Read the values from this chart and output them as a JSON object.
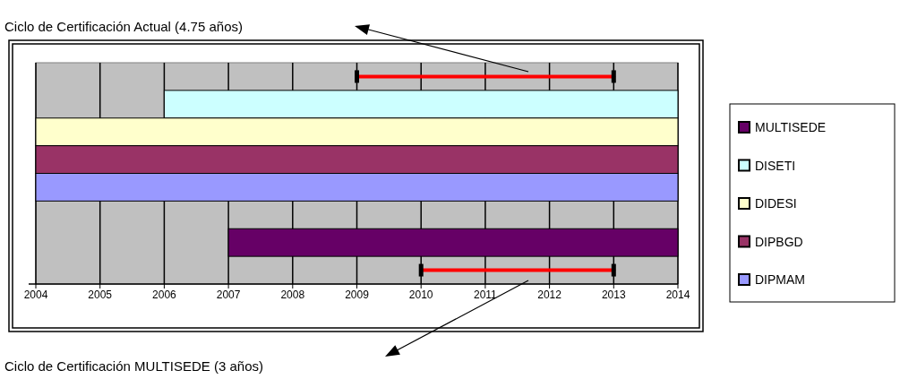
{
  "chart_data": {
    "type": "bar",
    "orientation": "horizontal",
    "categories": [
      null,
      null,
      null,
      null,
      null,
      null,
      null,
      null
    ],
    "series": [
      {
        "name": "MULTISEDE",
        "color": "#660066",
        "values": [
          null,
          null,
          null,
          null,
          null,
          null,
          7,
          null
        ],
        "base": [
          null,
          null,
          null,
          null,
          null,
          null,
          2007,
          null
        ]
      },
      {
        "name": "DISETI",
        "color": "#ccffff",
        "values": [
          null,
          8,
          null,
          null,
          null,
          null,
          null,
          null
        ],
        "base": [
          null,
          2006,
          null,
          null,
          null,
          null,
          null,
          null
        ]
      },
      {
        "name": "DIDESI",
        "color": "#ffffcc",
        "values": [
          null,
          null,
          10,
          null,
          null,
          null,
          null,
          null
        ],
        "base": [
          null,
          null,
          2004,
          null,
          null,
          null,
          null,
          null
        ]
      },
      {
        "name": "DIPBGD",
        "color": "#993366",
        "values": [
          null,
          null,
          null,
          10,
          null,
          null,
          null,
          null
        ],
        "base": [
          null,
          null,
          null,
          2004,
          null,
          null,
          null,
          null
        ]
      },
      {
        "name": "DIPMAM",
        "color": "#9999ff",
        "values": [
          null,
          null,
          null,
          null,
          10,
          null,
          null,
          null
        ],
        "base": [
          null,
          null,
          null,
          null,
          2004,
          null,
          null,
          null
        ]
      },
      {
        "color": "#ff0000",
        "line_style": "solid",
        "values": [
          4,
          null,
          null,
          null,
          null,
          null,
          null,
          3
        ],
        "base": [
          2009,
          null,
          null,
          null,
          null,
          null,
          null,
          2010
        ]
      }
    ],
    "xlim": [
      2004,
      2014
    ],
    "xticks": [
      2004,
      2005,
      2006,
      2007,
      2008,
      2009,
      2010,
      2011,
      2012,
      2013,
      2014
    ],
    "grid": "x",
    "legend": "right",
    "tick_labels": "x",
    "annotations": [
      "Ciclo de Certificación Actual (4.75 años)",
      "Ciclo de Certificación MULTISEDE (3 años)"
    ]
  }
}
